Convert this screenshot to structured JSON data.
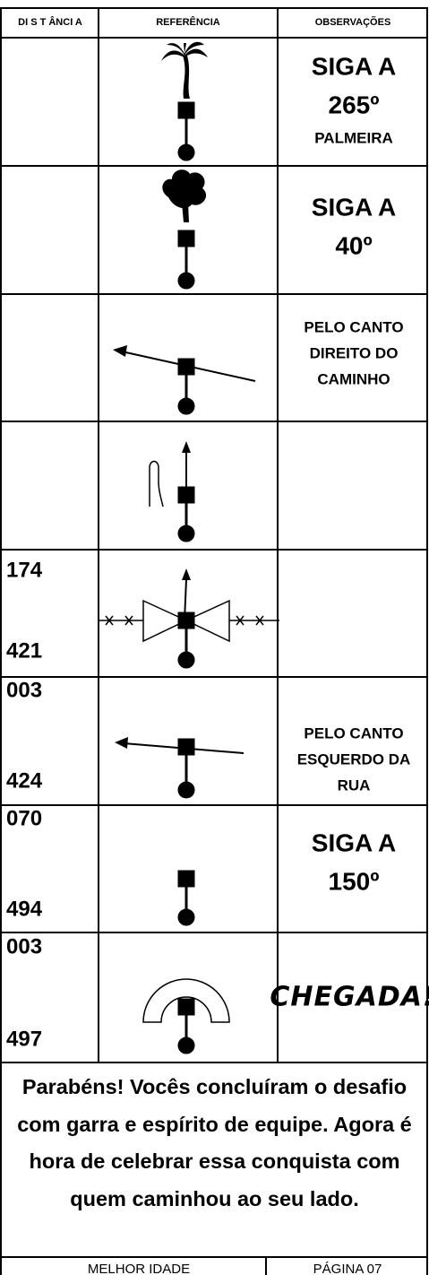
{
  "header": {
    "columns": [
      "DI S T ÂNCI A",
      "REFERÊNCIA",
      "OBSERVAÇÕES"
    ]
  },
  "rows": [
    {
      "observations": [
        "SIGA A",
        "265º",
        "PALMEIRA"
      ]
    },
    {
      "observations": [
        "SIGA A",
        "40º"
      ]
    },
    {
      "observations": [
        "PELO CANTO",
        "DIREITO DO",
        "CAMINHO"
      ]
    },
    {},
    {
      "distance": [
        "174",
        "421"
      ]
    },
    {
      "distance": [
        "003",
        "424"
      ],
      "observations": [
        "PELO CANTO",
        "ESQUERDO DA",
        "RUA"
      ]
    },
    {
      "distance": [
        "070",
        "494"
      ],
      "observations": [
        "SIGA A",
        "150º"
      ]
    },
    {
      "distance": [
        "003",
        "497"
      ],
      "observations": [
        "CHEGADA!"
      ]
    }
  ],
  "closing": "Parabéns! Vocês concluíram o desafio com garra e espírito de equipe. Agora é hora de celebrar essa conquista com quem caminhou ao seu lado.",
  "footer": {
    "left": "MELHOR IDADE",
    "right": "PÁGINA 07"
  }
}
